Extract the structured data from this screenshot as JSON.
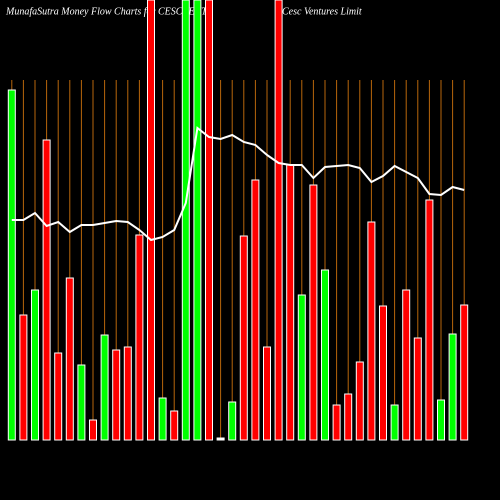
{
  "chart_data": {
    "type": "bar",
    "title": "MunafaSutra  Money Flow  Charts for CESCVENT",
    "subtitle": "Cesc Ventures Limit",
    "ylim": [
      0,
      440
    ],
    "grid_color": "#b8660b",
    "line_color": "#ffffff",
    "series": [
      {
        "name": "Money Flow",
        "values": [
          350,
          125,
          150,
          300,
          87,
          162,
          75,
          20,
          105,
          90,
          93,
          205,
          440,
          42,
          29,
          440,
          440,
          440,
          2,
          38,
          204,
          260,
          93,
          440,
          275,
          145,
          255,
          170,
          35,
          46,
          78,
          218,
          134,
          35,
          150,
          102,
          240,
          40,
          106,
          135
        ],
        "colors": [
          "#00ff00",
          "#ff0000",
          "#00ff00",
          "#ff0000",
          "#ff0000",
          "#ff0000",
          "#00ff00",
          "#ff0000",
          "#00ff00",
          "#ff0000",
          "#ff0000",
          "#ff0000",
          "#ff0000",
          "#00ff00",
          "#ff0000",
          "#00ff00",
          "#00ff00",
          "#ff0000",
          "#ffffff",
          "#00ff00",
          "#ff0000",
          "#ff0000",
          "#ff0000",
          "#ff0000",
          "#ff0000",
          "#00ff00",
          "#ff0000",
          "#00ff00",
          "#ff0000",
          "#ff0000",
          "#ff0000",
          "#ff0000",
          "#ff0000",
          "#00ff00",
          "#ff0000",
          "#ff0000",
          "#ff0000",
          "#00ff00",
          "#00ff00",
          "#ff0000"
        ]
      },
      {
        "name": "Price",
        "values": [
          220,
          220,
          227,
          214,
          218,
          208,
          215,
          215,
          217,
          219,
          218,
          210,
          200,
          203,
          210,
          237,
          312,
          303,
          301,
          305,
          298,
          295,
          285,
          277,
          275,
          275,
          262,
          273,
          274,
          275,
          272,
          258,
          264,
          274,
          268,
          262,
          246,
          245,
          253,
          250
        ]
      }
    ]
  }
}
